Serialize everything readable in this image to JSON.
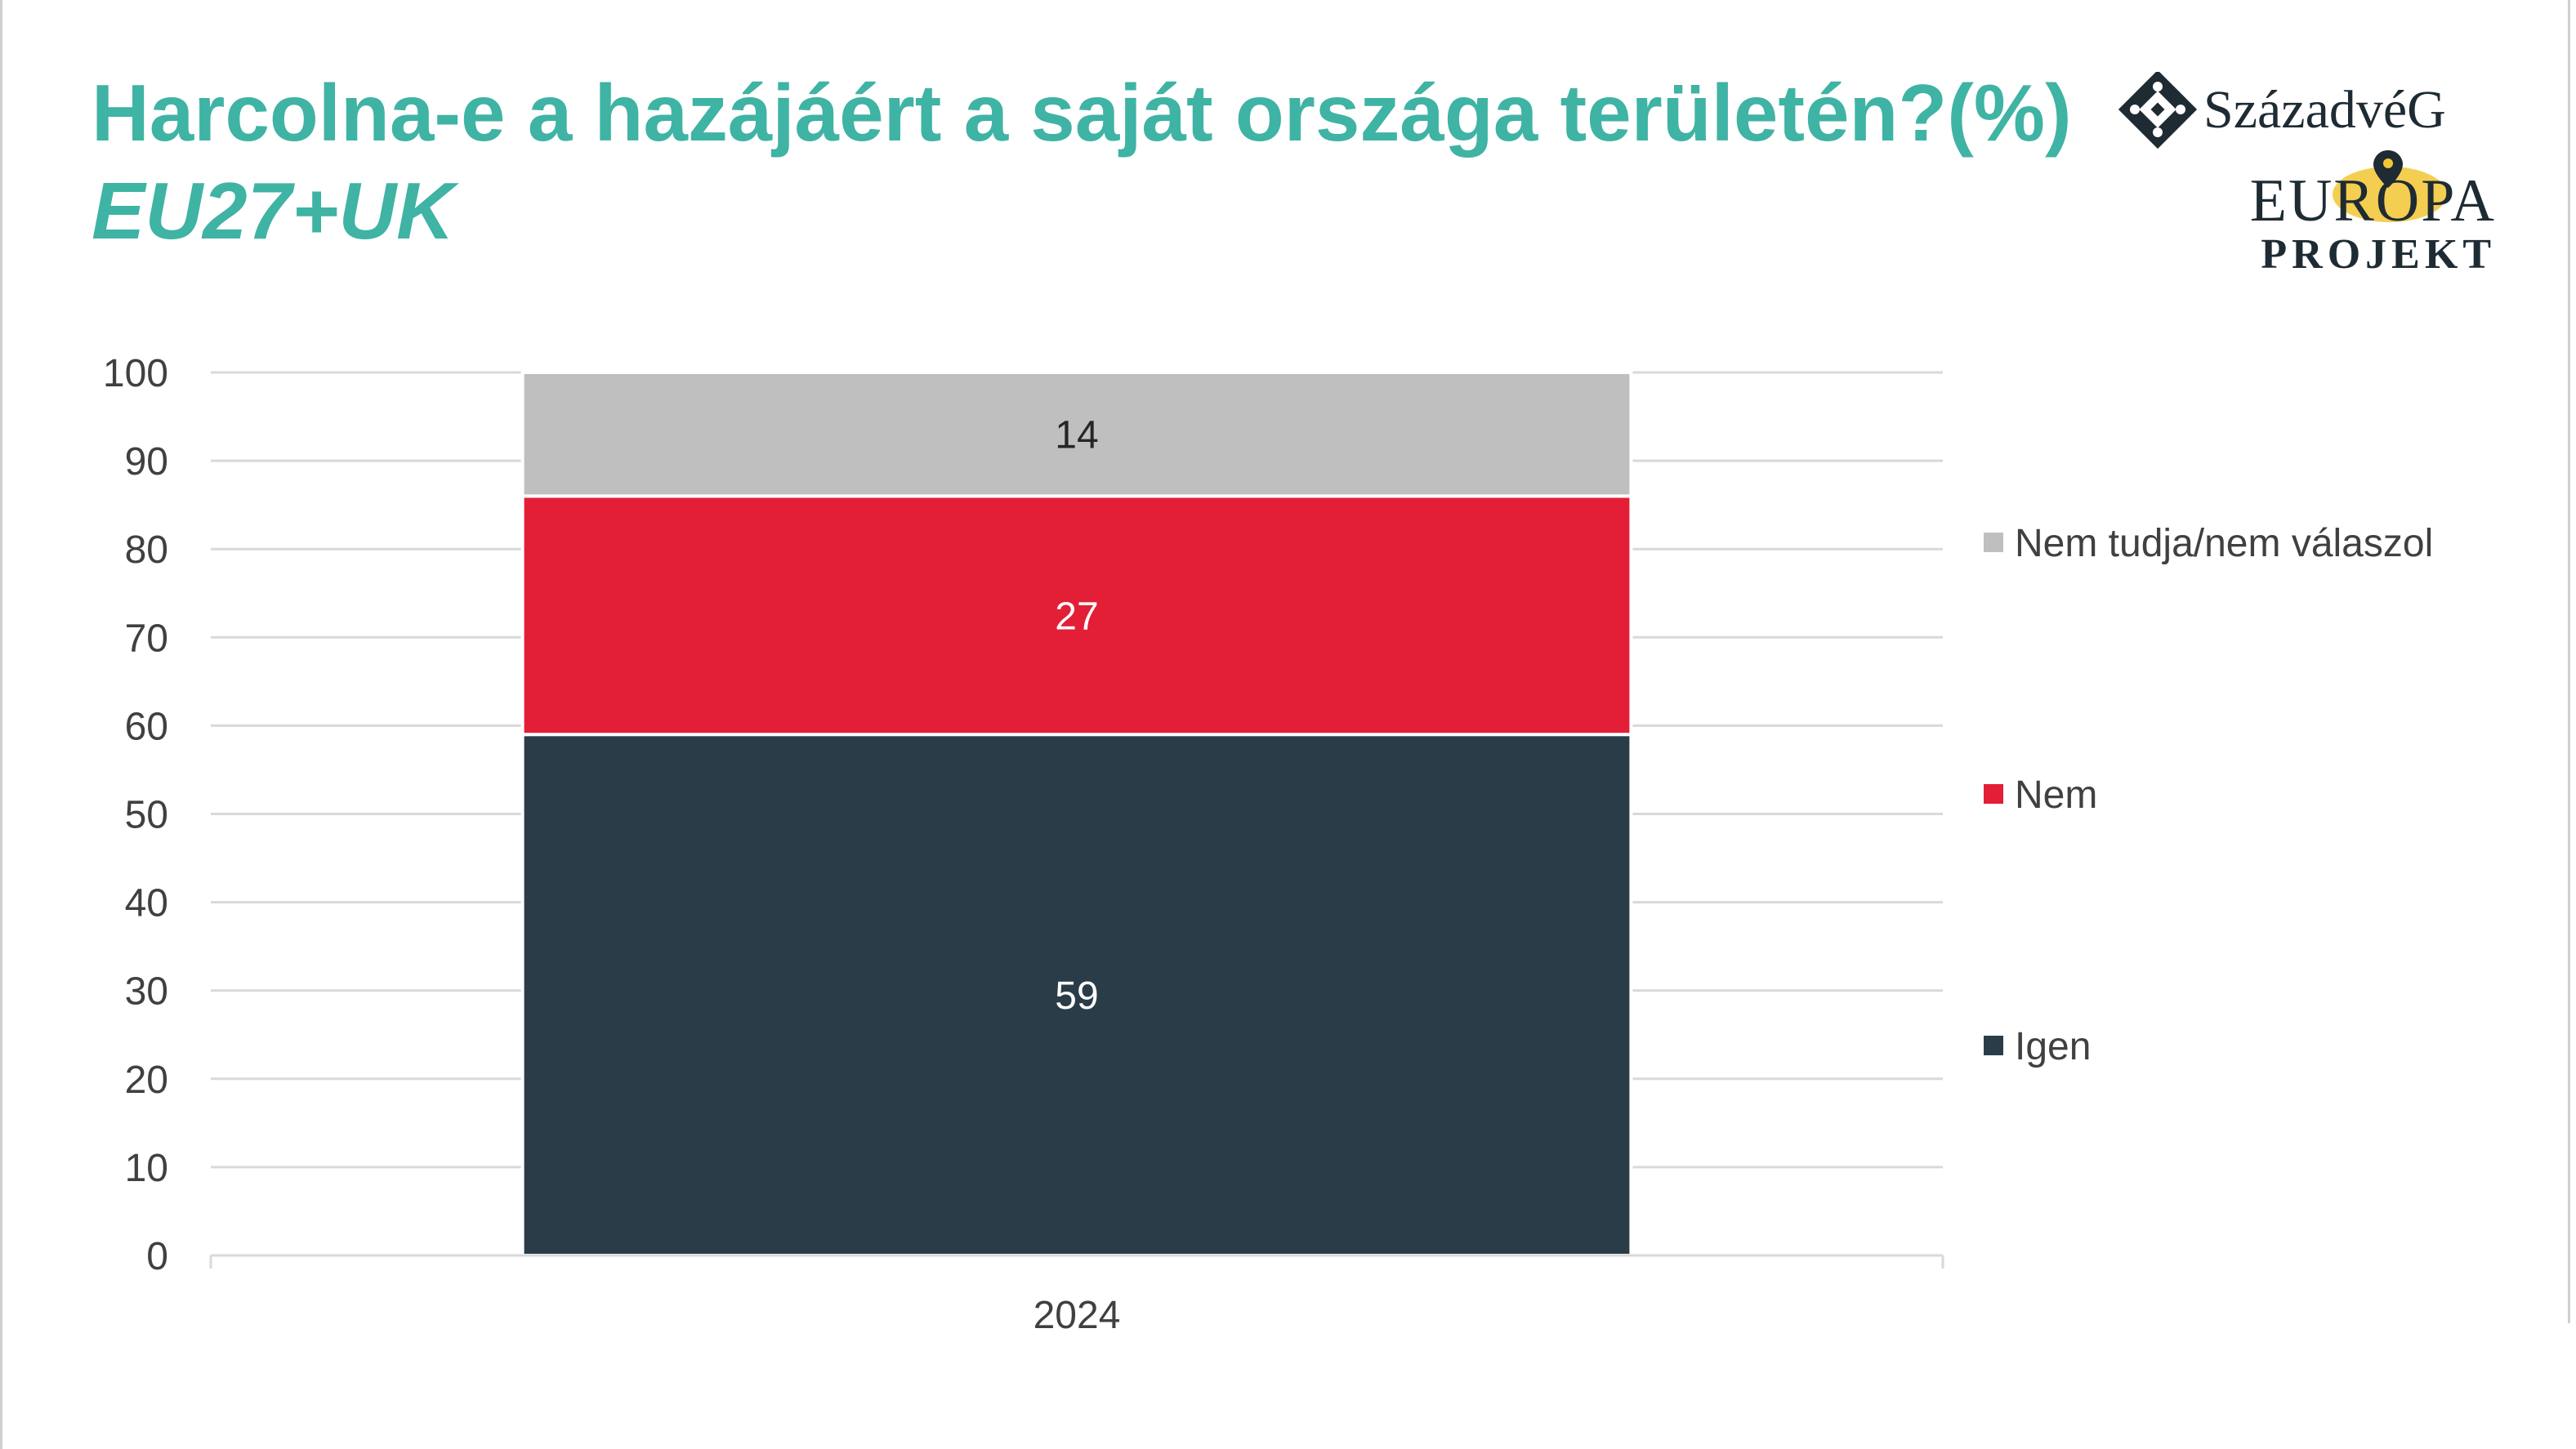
{
  "header": {
    "title": "Harcolna-e a hazájáért a saját országa területén?(%)",
    "subtitle": "EU27+UK"
  },
  "logo": {
    "line1": "SzázadvéG",
    "line2": "EUROPA",
    "line3": "PROJEKT",
    "icon": "diamond-cross-icon",
    "pin": "map-pin-icon"
  },
  "chart_data": {
    "type": "bar",
    "stacked": true,
    "categories": [
      "2024"
    ],
    "series": [
      {
        "name": "Igen",
        "values": [
          59
        ],
        "color": "#2a3c47"
      },
      {
        "name": "Nem",
        "values": [
          27
        ],
        "color": "#e31e37"
      },
      {
        "name": "Nem tudja/nem válaszol",
        "values": [
          14
        ],
        "color": "#bfbfbf"
      }
    ],
    "ylim": [
      0,
      100
    ],
    "yticks": [
      0,
      10,
      20,
      30,
      40,
      50,
      60,
      70,
      80,
      90,
      100
    ],
    "grid": true,
    "legend": "right",
    "data_labels": true
  }
}
